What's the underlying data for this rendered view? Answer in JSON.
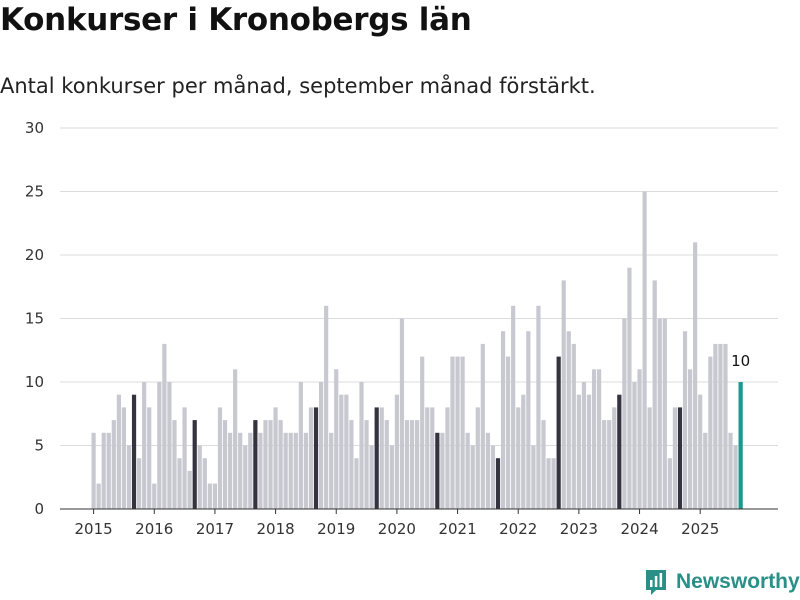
{
  "header": {
    "title": "Konkurser i Kronobergs län",
    "subtitle": "Antal konkurser per månad, september månad förstärkt."
  },
  "brand": {
    "name": "Newsworthy"
  },
  "colors": {
    "regular": "#c8c8d0",
    "september": "#35333f",
    "latest": "#189a8f"
  },
  "chart_data": {
    "type": "bar",
    "title": "Konkurser i Kronobergs län",
    "subtitle": "Antal konkurser per månad, september månad förstärkt.",
    "xlabel": "",
    "ylabel": "",
    "ylim": [
      0,
      30
    ],
    "yticks": [
      "0",
      "5",
      "10",
      "15",
      "20",
      "25",
      "30"
    ],
    "year_labels": [
      "2015",
      "2016",
      "2017",
      "2018",
      "2019",
      "2020",
      "2021",
      "2022",
      "2023",
      "2024",
      "2025"
    ],
    "start": "2015-01",
    "grid": true,
    "highlight": "september",
    "last_value_label": "10",
    "values": [
      6,
      2,
      6,
      6,
      7,
      9,
      8,
      5,
      9,
      4,
      10,
      8,
      2,
      10,
      13,
      10,
      7,
      4,
      8,
      3,
      7,
      5,
      4,
      2,
      2,
      8,
      7,
      6,
      11,
      6,
      5,
      6,
      7,
      6,
      7,
      7,
      8,
      7,
      6,
      6,
      6,
      10,
      6,
      8,
      8,
      10,
      16,
      6,
      11,
      9,
      9,
      7,
      4,
      10,
      7,
      5,
      8,
      8,
      7,
      5,
      9,
      15,
      7,
      7,
      7,
      12,
      8,
      8,
      6,
      6,
      8,
      12,
      12,
      12,
      6,
      5,
      8,
      13,
      6,
      5,
      4,
      14,
      12,
      16,
      8,
      9,
      14,
      5,
      16,
      7,
      4,
      4,
      12,
      18,
      14,
      13,
      9,
      10,
      9,
      11,
      11,
      7,
      7,
      8,
      9,
      15,
      19,
      10,
      11,
      25,
      8,
      18,
      15,
      15,
      4,
      8,
      8,
      14,
      11,
      21,
      9,
      6,
      12,
      13,
      13,
      13,
      6,
      5,
      10
    ]
  }
}
